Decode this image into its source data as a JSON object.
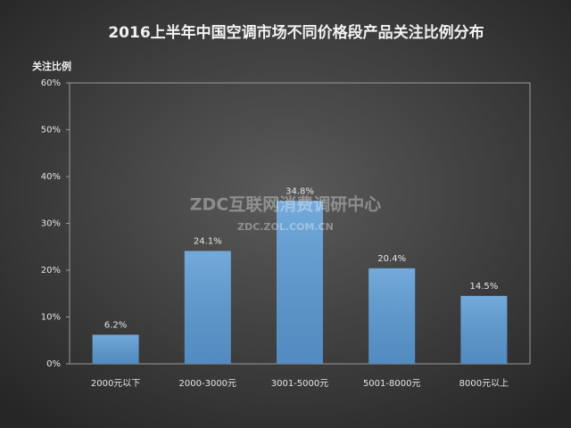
{
  "chart_data": {
    "type": "bar",
    "title": "2016上半年中国空调市场不同价格段产品关注比例分布",
    "y_label": "关注比例",
    "categories": [
      "2000元以下",
      "2000-3000元",
      "3001-5000元",
      "5001-8000元",
      "8000元以上"
    ],
    "values": [
      6.2,
      24.1,
      34.8,
      20.4,
      14.5
    ],
    "value_labels": [
      "6.2%",
      "24.1%",
      "34.8%",
      "20.4%",
      "14.5%"
    ],
    "color": "#5b9bd5",
    "ylim": [
      0,
      60
    ],
    "yticks": [
      {
        "value": 0,
        "label": "0%"
      },
      {
        "value": 10,
        "label": "10%"
      },
      {
        "value": 20,
        "label": "20%"
      },
      {
        "value": 30,
        "label": "30%"
      },
      {
        "value": 40,
        "label": "40%"
      },
      {
        "value": 50,
        "label": "50%"
      },
      {
        "value": 60,
        "label": "60%"
      }
    ],
    "grid": false,
    "watermark": {
      "name": "ZDC互联网消费调研中心",
      "url": "ZDC.ZOL.COM.CN"
    }
  }
}
